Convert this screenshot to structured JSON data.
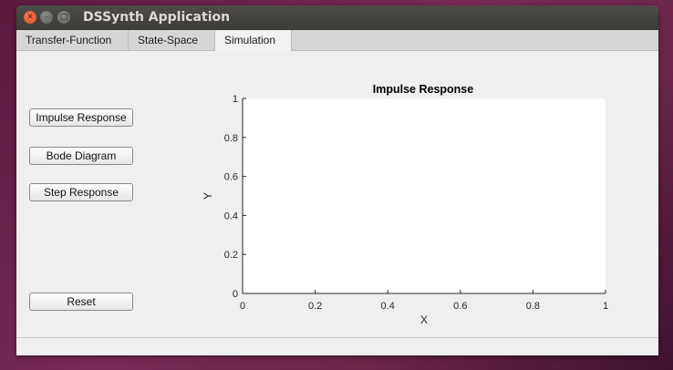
{
  "window": {
    "title": "DSSynth Application",
    "controls": {
      "close": "✕",
      "minimize": "–",
      "maximize": "□"
    }
  },
  "tabs": [
    {
      "label": "Transfer-Function"
    },
    {
      "label": "State-Space"
    },
    {
      "label": "Simulation",
      "active": true
    }
  ],
  "buttons": {
    "impulse": "Impulse Response",
    "bode": "Bode Diagram",
    "step": "Step Response",
    "reset": "Reset"
  },
  "colors": {
    "desktop": "#6b2648",
    "titlebar": "#3c3b37",
    "close_button": "#e0572c",
    "panel": "#efefef"
  },
  "chart_data": {
    "type": "line",
    "title": "Impulse Response",
    "xlabel": "X",
    "ylabel": "Y",
    "xlim": [
      0,
      1
    ],
    "ylim": [
      0,
      1
    ],
    "xticks": [
      "0",
      "0.2",
      "0.4",
      "0.6",
      "0.8",
      "1"
    ],
    "yticks": [
      "0",
      "0.2",
      "0.4",
      "0.6",
      "0.8",
      "1"
    ],
    "series": [],
    "grid": false
  }
}
